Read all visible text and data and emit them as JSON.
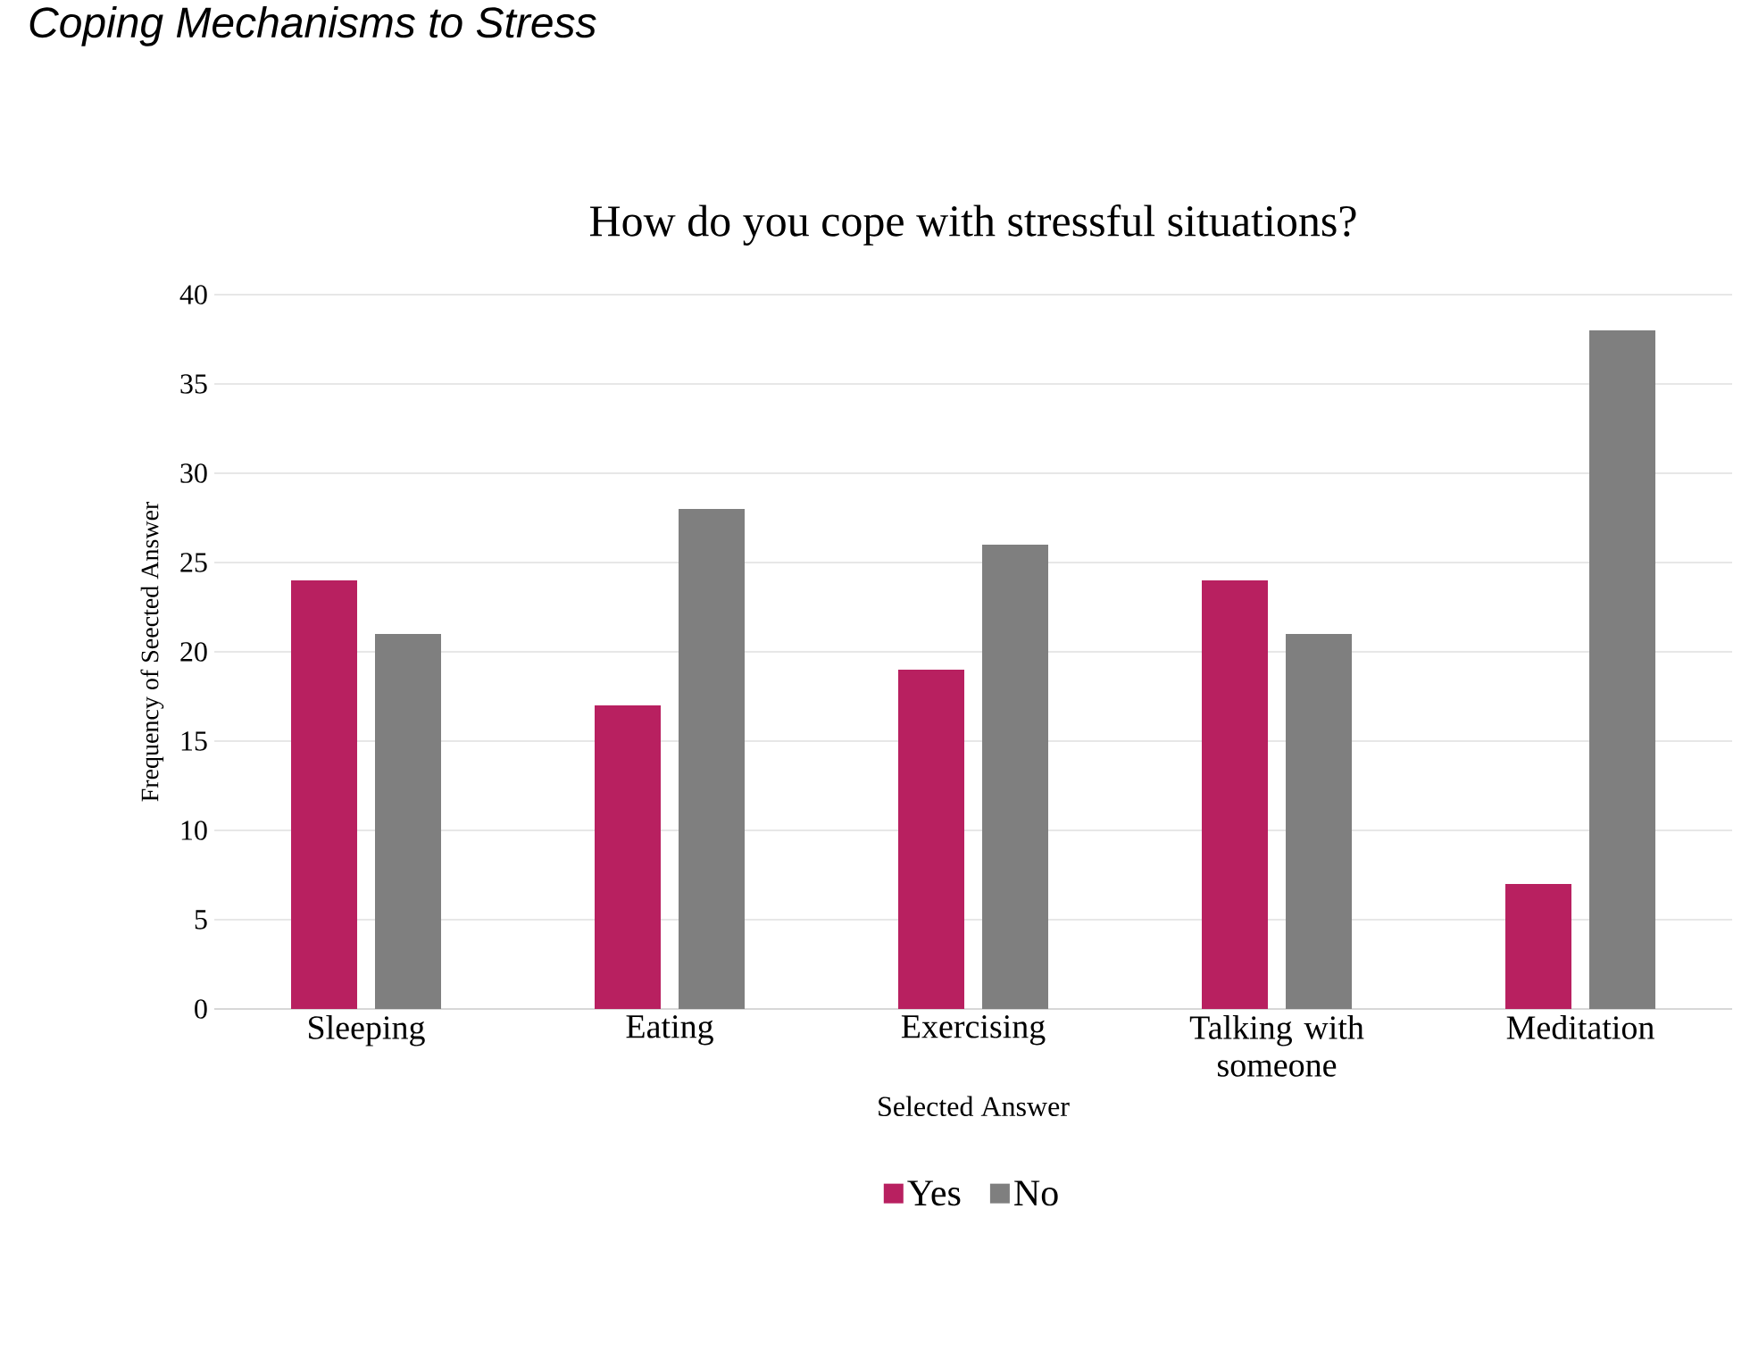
{
  "chart_data": {
    "type": "bar",
    "title": "How do you cope with stressful situations?",
    "xlabel": "Selected Answer",
    "ylabel": "Frequency of Seected Answer",
    "annotations": [
      "Coping Mechanisms to Stress"
    ],
    "categories": [
      "Sleeping",
      "Eating",
      "Exercising",
      "Talking with someone",
      "Meditation"
    ],
    "series": [
      {
        "name": "Yes",
        "color": "#b82060",
        "values": [
          24,
          17,
          19,
          24,
          7
        ]
      },
      {
        "name": "No",
        "color": "#7f7f7f",
        "values": [
          21,
          28,
          26,
          21,
          38
        ]
      }
    ],
    "ylim": [
      0,
      40
    ],
    "yticks": [
      0,
      5,
      10,
      15,
      20,
      25,
      30,
      35,
      40
    ],
    "grid": "y",
    "legend": "bottom"
  }
}
